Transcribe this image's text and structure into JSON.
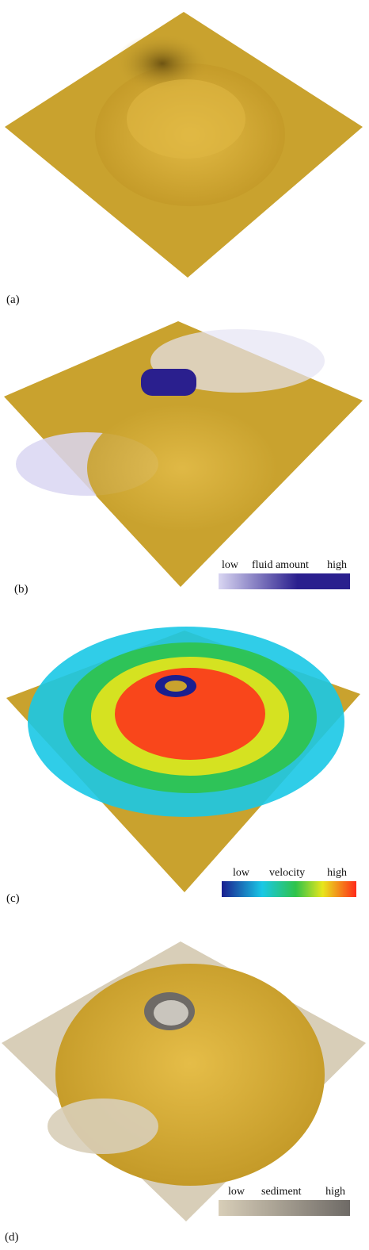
{
  "panels": [
    {
      "label": "(a)"
    },
    {
      "label": "(b)",
      "legend": {
        "low": "low",
        "title": "fluid amount",
        "high": "high"
      }
    },
    {
      "label": "(c)",
      "legend": {
        "low": "low",
        "title": "velocity",
        "high": "high"
      }
    },
    {
      "label": "(d)",
      "legend": {
        "low": "low",
        "title": "sediment",
        "high": "high"
      }
    }
  ],
  "colors": {
    "terrain": "#c9a22e",
    "fluid_low": "#d9d6f2",
    "fluid_high": "#2a1f8e",
    "sediment_low": "#d8ceb8",
    "sediment_high": "#6e6a66",
    "velocity_scale": [
      "#1a1f8f",
      "#19c8e6",
      "#2fc34a",
      "#e8e61c",
      "#ff2a1a"
    ]
  }
}
